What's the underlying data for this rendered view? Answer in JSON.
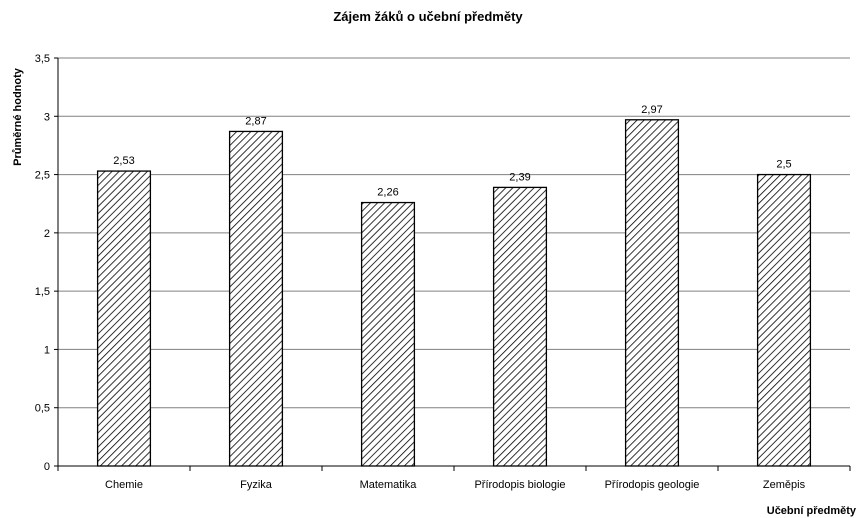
{
  "chart_data": {
    "type": "bar",
    "title": "Zájem žáků o učební předměty",
    "xlabel": "Učební předměty",
    "ylabel": "Průměrné hodnoty",
    "categories": [
      "Chemie",
      "Fyzika",
      "Matematika",
      "Přírodopis biologie",
      "Přírodopis geologie",
      "Zeměpis"
    ],
    "values": [
      2.53,
      2.87,
      2.26,
      2.39,
      2.97,
      2.5
    ],
    "data_labels": [
      "2,53",
      "2,87",
      "2,26",
      "2,39",
      "2,97",
      "2,5"
    ],
    "ylim": [
      0,
      3.5
    ],
    "y_ticks": [
      0,
      0.5,
      1,
      1.5,
      2,
      2.5,
      3,
      3.5
    ],
    "y_tick_labels": [
      "0",
      "0,5",
      "1",
      "1,5",
      "2",
      "2,5",
      "3",
      "3,5"
    ],
    "grid": true,
    "legend": "none",
    "bar_fill": "diagonal-hatch",
    "colors": {
      "bar_stroke": "#000000",
      "hatch": "#000000",
      "grid": "#808080",
      "background": "#ffffff"
    }
  }
}
